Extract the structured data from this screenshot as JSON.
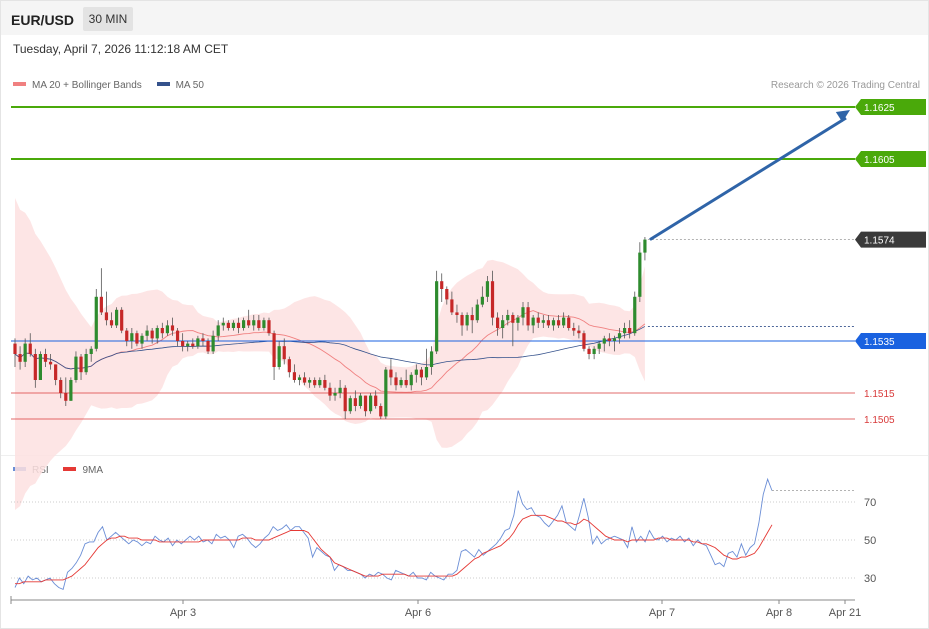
{
  "header": {
    "symbol": "EUR/USD",
    "timeframe": "30 MIN",
    "datetime": "Tuesday, April 7, 2026 11:12:18 AM CET"
  },
  "legend": {
    "ma20": "MA 20 + Bollinger Bands",
    "ma50": "MA 50",
    "rsi": "RSI",
    "rsi_ma": "9MA"
  },
  "copyright": "Research © 2026 Trading Central",
  "colors": {
    "bull": "#2e8b2e",
    "bear": "#c62828",
    "ma20": "#f08080",
    "ma50": "#35528c",
    "band": "#fde0e0",
    "resistance": "#4aa90a",
    "pivot": "#1a62e0",
    "support": "#d83a3a",
    "last": "#3a3a3a",
    "arrow": "#2f64a8",
    "rsi": "#6b8ed6",
    "rsi_ma": "#e53935"
  },
  "chart_data": [
    {
      "type": "candlestick",
      "symbol": "EUR/USD",
      "interval": "30 MIN",
      "ylim": [
        1.1497,
        1.1627
      ],
      "levels": [
        {
          "value": 1.1625,
          "label": "1.1625",
          "kind": "resistance"
        },
        {
          "value": 1.1605,
          "label": "1.1605",
          "kind": "resistance"
        },
        {
          "value": 1.1574,
          "label": "1.1574",
          "kind": "last"
        },
        {
          "value": 1.1535,
          "label": "1.1535",
          "kind": "pivot"
        },
        {
          "value": 1.1515,
          "label": "1.1515",
          "kind": "support"
        },
        {
          "value": 1.1505,
          "label": "1.1505",
          "kind": "support"
        }
      ],
      "projection": {
        "from": 1.1574,
        "to": 1.1625
      },
      "candles": [
        [
          1.1534,
          1.1536,
          1.1525,
          1.153
        ],
        [
          1.153,
          1.1533,
          1.1524,
          1.1527
        ],
        [
          1.1527,
          1.1536,
          1.1525,
          1.1534
        ],
        [
          1.1534,
          1.1538,
          1.1529,
          1.153
        ],
        [
          1.153,
          1.1532,
          1.1517,
          1.152
        ],
        [
          1.152,
          1.1531,
          1.152,
          1.153
        ],
        [
          1.153,
          1.1532,
          1.1525,
          1.1527
        ],
        [
          1.1527,
          1.153,
          1.1524,
          1.1526
        ],
        [
          1.1526,
          1.1526,
          1.1518,
          1.152
        ],
        [
          1.152,
          1.1521,
          1.1513,
          1.1515
        ],
        [
          1.1515,
          1.1521,
          1.151,
          1.1512
        ],
        [
          1.1512,
          1.1521,
          1.1512,
          1.152
        ],
        [
          1.152,
          1.1531,
          1.1519,
          1.1529
        ],
        [
          1.1529,
          1.153,
          1.152,
          1.1523
        ],
        [
          1.1523,
          1.1532,
          1.1522,
          1.153
        ],
        [
          1.153,
          1.1533,
          1.1527,
          1.1532
        ],
        [
          1.1532,
          1.1555,
          1.1531,
          1.1552
        ],
        [
          1.1552,
          1.1563,
          1.1545,
          1.1546
        ],
        [
          1.1546,
          1.1554,
          1.1541,
          1.1543
        ],
        [
          1.1543,
          1.1546,
          1.154,
          1.1541
        ],
        [
          1.1541,
          1.1548,
          1.154,
          1.1547
        ],
        [
          1.1547,
          1.1548,
          1.1538,
          1.1539
        ],
        [
          1.1539,
          1.154,
          1.1533,
          1.1535
        ],
        [
          1.1535,
          1.154,
          1.1532,
          1.1538
        ],
        [
          1.1538,
          1.1539,
          1.1533,
          1.1534
        ],
        [
          1.1534,
          1.1538,
          1.1532,
          1.1537
        ],
        [
          1.1537,
          1.1541,
          1.1535,
          1.1539
        ],
        [
          1.1539,
          1.154,
          1.1534,
          1.1536
        ],
        [
          1.1536,
          1.1541,
          1.1534,
          1.154
        ],
        [
          1.154,
          1.1542,
          1.1536,
          1.1538
        ],
        [
          1.1538,
          1.1543,
          1.1537,
          1.1541
        ],
        [
          1.1541,
          1.1544,
          1.1537,
          1.1539
        ],
        [
          1.1539,
          1.154,
          1.1533,
          1.1535
        ],
        [
          1.1535,
          1.1538,
          1.1531,
          1.1533
        ],
        [
          1.1533,
          1.1535,
          1.1531,
          1.1534
        ],
        [
          1.1534,
          1.1536,
          1.1532,
          1.1533
        ],
        [
          1.1533,
          1.1537,
          1.1532,
          1.1536
        ],
        [
          1.1536,
          1.1538,
          1.1533,
          1.1535
        ],
        [
          1.1535,
          1.1536,
          1.153,
          1.1531
        ],
        [
          1.1531,
          1.1539,
          1.153,
          1.1537
        ],
        [
          1.1537,
          1.1543,
          1.1535,
          1.1541
        ],
        [
          1.1541,
          1.1544,
          1.1539,
          1.1542
        ],
        [
          1.1542,
          1.1543,
          1.1539,
          1.154
        ],
        [
          1.154,
          1.1543,
          1.1539,
          1.1542
        ],
        [
          1.1542,
          1.1544,
          1.1538,
          1.154
        ],
        [
          1.154,
          1.1544,
          1.1539,
          1.1543
        ],
        [
          1.1543,
          1.1547,
          1.154,
          1.1541
        ],
        [
          1.1541,
          1.1545,
          1.1539,
          1.1543
        ],
        [
          1.1543,
          1.1545,
          1.1539,
          1.154
        ],
        [
          1.154,
          1.1544,
          1.1539,
          1.1543
        ],
        [
          1.1543,
          1.1544,
          1.1537,
          1.1538
        ],
        [
          1.1538,
          1.1539,
          1.152,
          1.1525
        ],
        [
          1.1525,
          1.1535,
          1.1524,
          1.1533
        ],
        [
          1.1533,
          1.1536,
          1.1526,
          1.1528
        ],
        [
          1.1528,
          1.1529,
          1.1521,
          1.1523
        ],
        [
          1.1523,
          1.1526,
          1.1519,
          1.152
        ],
        [
          1.152,
          1.1522,
          1.1518,
          1.1521
        ],
        [
          1.1521,
          1.1523,
          1.1518,
          1.1519
        ],
        [
          1.1519,
          1.1521,
          1.1517,
          1.152
        ],
        [
          1.152,
          1.1521,
          1.1517,
          1.1518
        ],
        [
          1.1518,
          1.1521,
          1.1517,
          1.152
        ],
        [
          1.152,
          1.1522,
          1.1516,
          1.1517
        ],
        [
          1.1517,
          1.1519,
          1.1512,
          1.1514
        ],
        [
          1.1514,
          1.1517,
          1.1512,
          1.1515
        ],
        [
          1.1515,
          1.152,
          1.1513,
          1.1517
        ],
        [
          1.1517,
          1.1518,
          1.1505,
          1.1508
        ],
        [
          1.1508,
          1.1514,
          1.1507,
          1.1513
        ],
        [
          1.1513,
          1.1516,
          1.1508,
          1.151
        ],
        [
          1.151,
          1.1515,
          1.1509,
          1.1514
        ],
        [
          1.1514,
          1.1514,
          1.1506,
          1.1508
        ],
        [
          1.1508,
          1.1515,
          1.1507,
          1.1514
        ],
        [
          1.1514,
          1.1516,
          1.1509,
          1.151
        ],
        [
          1.151,
          1.1511,
          1.1505,
          1.1506
        ],
        [
          1.1506,
          1.1525,
          1.1505,
          1.1524
        ],
        [
          1.1524,
          1.1528,
          1.1518,
          1.1521
        ],
        [
          1.1521,
          1.1523,
          1.1516,
          1.1518
        ],
        [
          1.1518,
          1.1521,
          1.1517,
          1.152
        ],
        [
          1.152,
          1.1524,
          1.1517,
          1.1518
        ],
        [
          1.1518,
          1.1523,
          1.1516,
          1.1522
        ],
        [
          1.1522,
          1.1526,
          1.1519,
          1.1524
        ],
        [
          1.1524,
          1.1525,
          1.1518,
          1.1521
        ],
        [
          1.1521,
          1.1532,
          1.152,
          1.1525
        ],
        [
          1.1525,
          1.1533,
          1.1522,
          1.1531
        ],
        [
          1.1531,
          1.1562,
          1.153,
          1.1558
        ],
        [
          1.1558,
          1.1561,
          1.155,
          1.1555
        ],
        [
          1.1555,
          1.1556,
          1.1549,
          1.1551
        ],
        [
          1.1551,
          1.1554,
          1.1545,
          1.1546
        ],
        [
          1.1546,
          1.1549,
          1.1542,
          1.1545
        ],
        [
          1.1545,
          1.1546,
          1.1537,
          1.1541
        ],
        [
          1.1541,
          1.1546,
          1.1539,
          1.1545
        ],
        [
          1.1545,
          1.1548,
          1.1538,
          1.1543
        ],
        [
          1.1543,
          1.1551,
          1.1542,
          1.1549
        ],
        [
          1.1549,
          1.1556,
          1.1548,
          1.1552
        ],
        [
          1.1552,
          1.156,
          1.155,
          1.1558
        ],
        [
          1.1558,
          1.1562,
          1.1541,
          1.1544
        ],
        [
          1.1544,
          1.1546,
          1.1537,
          1.154
        ],
        [
          1.154,
          1.1545,
          1.1536,
          1.1543
        ],
        [
          1.1543,
          1.1547,
          1.1541,
          1.1545
        ],
        [
          1.1545,
          1.1546,
          1.1533,
          1.1542
        ],
        [
          1.1542,
          1.1545,
          1.1539,
          1.1544
        ],
        [
          1.1544,
          1.155,
          1.1541,
          1.1548
        ],
        [
          1.1548,
          1.155,
          1.1539,
          1.1541
        ],
        [
          1.1541,
          1.1545,
          1.1538,
          1.1544
        ],
        [
          1.1544,
          1.1546,
          1.154,
          1.1542
        ],
        [
          1.1542,
          1.1545,
          1.154,
          1.1543
        ],
        [
          1.1543,
          1.1545,
          1.154,
          1.1541
        ],
        [
          1.1541,
          1.1544,
          1.1539,
          1.1543
        ],
        [
          1.1543,
          1.1545,
          1.154,
          1.1541
        ],
        [
          1.1541,
          1.1546,
          1.154,
          1.1544
        ],
        [
          1.1544,
          1.1545,
          1.1539,
          1.154
        ],
        [
          1.154,
          1.1542,
          1.1537,
          1.1539
        ],
        [
          1.1539,
          1.1541,
          1.1536,
          1.1538
        ],
        [
          1.1538,
          1.1539,
          1.1531,
          1.1532
        ],
        [
          1.1532,
          1.1533,
          1.1528,
          1.153
        ],
        [
          1.153,
          1.1533,
          1.1528,
          1.1532
        ],
        [
          1.1532,
          1.1535,
          1.153,
          1.1534
        ],
        [
          1.1534,
          1.1537,
          1.1531,
          1.1536
        ],
        [
          1.1536,
          1.1538,
          1.1533,
          1.1535
        ],
        [
          1.1535,
          1.1537,
          1.1531,
          1.1536
        ],
        [
          1.1536,
          1.154,
          1.1534,
          1.1538
        ],
        [
          1.1538,
          1.1542,
          1.1536,
          1.154
        ],
        [
          1.154,
          1.1543,
          1.1536,
          1.1538
        ],
        [
          1.1538,
          1.1554,
          1.1537,
          1.1552
        ],
        [
          1.1552,
          1.1573,
          1.155,
          1.1569
        ],
        [
          1.1569,
          1.1575,
          1.1566,
          1.1574
        ]
      ]
    },
    {
      "type": "line",
      "title": "RSI",
      "yticks": [
        70,
        50,
        30
      ],
      "xticks": [
        "Apr 3",
        "Apr 6",
        "Apr 7",
        "Apr 8",
        "Apr 21"
      ],
      "series": [
        {
          "name": "RSI",
          "values": [
            25,
            30,
            27,
            31,
            29,
            30,
            28,
            29,
            30,
            27,
            25,
            24,
            33,
            35,
            38,
            42,
            48,
            49,
            49,
            54,
            57,
            50,
            52,
            54,
            52,
            50,
            48,
            50,
            49,
            47,
            49,
            48,
            52,
            50,
            49,
            51,
            47,
            50,
            48,
            50,
            52,
            50,
            52,
            49,
            50,
            48,
            53,
            51,
            52,
            50,
            46,
            52,
            53,
            51,
            48,
            46,
            48,
            51,
            53,
            57,
            55,
            56,
            58,
            55,
            57,
            57,
            54,
            51,
            41,
            46,
            44,
            42,
            41,
            34,
            37,
            36,
            34,
            34,
            33,
            32,
            30,
            32,
            31,
            33,
            32,
            30,
            29,
            34,
            33,
            32,
            31,
            33,
            30,
            30,
            29,
            33,
            31,
            30,
            29,
            32,
            32,
            34,
            44,
            45,
            43,
            41,
            45,
            42,
            44,
            46,
            48,
            51,
            55,
            56,
            63,
            76,
            69,
            66,
            67,
            63,
            62,
            59,
            57,
            60,
            63,
            68,
            59,
            57,
            55,
            63,
            72,
            62,
            48,
            52,
            48,
            50,
            51,
            52,
            51,
            50,
            46,
            57,
            49,
            52,
            49,
            55,
            51,
            50,
            52,
            49,
            51,
            50,
            52,
            49,
            51,
            47,
            50,
            48,
            47,
            42,
            37,
            38,
            36,
            43,
            44,
            41,
            48,
            42,
            46,
            48,
            59,
            74,
            82,
            76
          ]
        },
        {
          "name": "9MA",
          "values": [
            27,
            27,
            28,
            28,
            28,
            28,
            28,
            29,
            29,
            29,
            29,
            29,
            30,
            31,
            33,
            35,
            37,
            40,
            43,
            46,
            48,
            50,
            51,
            51,
            52,
            52,
            51,
            51,
            51,
            50,
            50,
            50,
            50,
            49,
            49,
            49,
            49,
            49,
            49,
            49,
            49,
            49,
            49,
            50,
            50,
            50,
            50,
            50,
            50,
            50,
            50,
            50,
            51,
            51,
            51,
            50,
            50,
            50,
            50,
            51,
            52,
            53,
            54,
            55,
            55,
            55,
            55,
            54,
            51,
            48,
            45,
            43,
            41,
            38,
            37,
            36,
            35,
            34,
            33,
            32,
            31,
            31,
            31,
            31,
            32,
            32,
            32,
            32,
            32,
            32,
            31,
            31,
            31,
            31,
            31,
            31,
            31,
            31,
            31,
            31,
            31,
            32,
            34,
            36,
            38,
            40,
            41,
            43,
            44,
            45,
            46,
            47,
            49,
            51,
            54,
            58,
            61,
            62,
            63,
            63,
            63,
            63,
            62,
            61,
            60,
            60,
            59,
            59,
            58,
            59,
            61,
            60,
            58,
            56,
            54,
            52,
            51,
            50,
            50,
            50,
            49,
            50,
            50,
            50,
            50,
            50,
            50,
            51,
            51,
            51,
            50,
            50,
            50,
            50,
            50,
            49,
            49,
            48,
            48,
            47,
            46,
            44,
            42,
            41,
            40,
            40,
            41,
            41,
            42,
            43,
            46,
            50,
            54,
            58
          ]
        }
      ]
    }
  ]
}
